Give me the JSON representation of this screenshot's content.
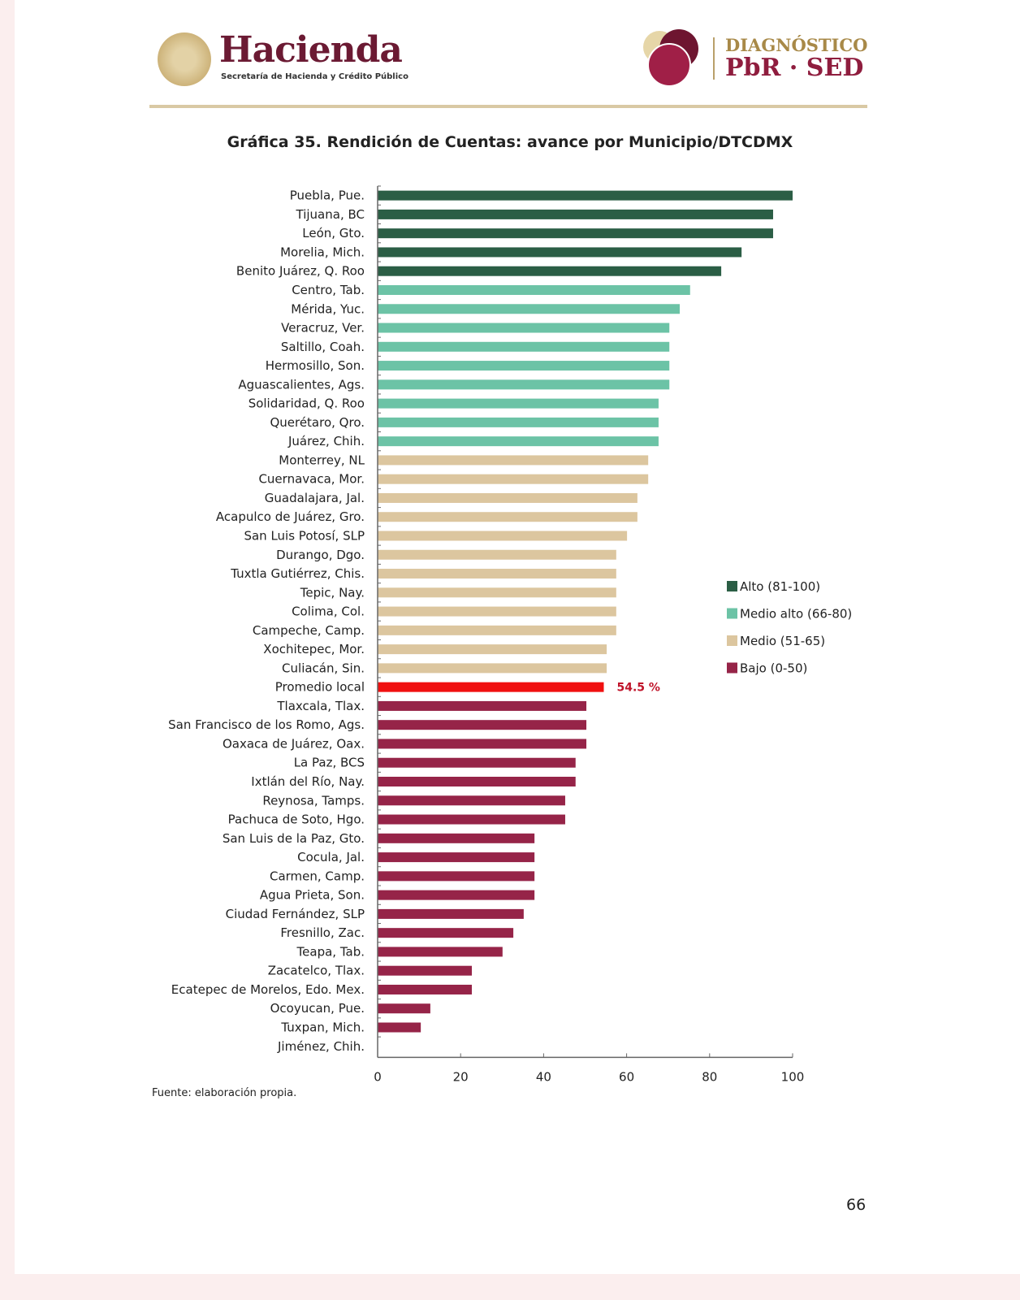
{
  "header": {
    "logo_left_title": "Hacienda",
    "logo_left_subtitle": "Secretaría de Hacienda y Crédito Público",
    "logo_right_line1": "DIAGNÓSTICO",
    "logo_right_line2": "PbR · SED"
  },
  "chart_data": {
    "type": "bar",
    "orientation": "horizontal",
    "title": "Gráfica 35. Rendición de Cuentas: avance por Municipio/DTCDMX",
    "xlabel": "",
    "ylabel": "",
    "xlim": [
      0,
      100
    ],
    "xticks": [
      "0",
      "20",
      "40",
      "60",
      "80",
      "100"
    ],
    "grid": false,
    "legend_position": "right",
    "colors": {
      "alto": "#2b5e45",
      "medio_alto": "#6cc3a6",
      "medio": "#dcc69f",
      "bajo": "#962448",
      "promedio": "#f01010"
    },
    "legend": [
      {
        "key": "alto",
        "label": "Alto (81-100)"
      },
      {
        "key": "medio_alto",
        "label": "Medio alto (66-80)"
      },
      {
        "key": "medio",
        "label": "Medio (51-65)"
      },
      {
        "key": "bajo",
        "label": "Bajo (0-50)"
      }
    ],
    "bars": [
      {
        "label": "Puebla, Pue.",
        "value": 100,
        "group": "alto"
      },
      {
        "label": "Tijuana, BC",
        "value": 95.3,
        "group": "alto"
      },
      {
        "label": "León, Gto.",
        "value": 95.3,
        "group": "alto"
      },
      {
        "label": "Morelia, Mich.",
        "value": 87.7,
        "group": "alto"
      },
      {
        "label": "Benito Juárez, Q. Roo",
        "value": 82.8,
        "group": "alto"
      },
      {
        "label": "Centro, Tab.",
        "value": 75.3,
        "group": "medio_alto"
      },
      {
        "label": "Mérida, Yuc.",
        "value": 72.8,
        "group": "medio_alto"
      },
      {
        "label": "Veracruz, Ver.",
        "value": 70.3,
        "group": "medio_alto"
      },
      {
        "label": "Saltillo, Coah.",
        "value": 70.3,
        "group": "medio_alto"
      },
      {
        "label": "Hermosillo, Son.",
        "value": 70.3,
        "group": "medio_alto"
      },
      {
        "label": "Aguascalientes, Ags.",
        "value": 70.3,
        "group": "medio_alto"
      },
      {
        "label": "Solidaridad, Q. Roo",
        "value": 67.7,
        "group": "medio_alto"
      },
      {
        "label": "Querétaro, Qro.",
        "value": 67.7,
        "group": "medio_alto"
      },
      {
        "label": "Juárez, Chih.",
        "value": 67.7,
        "group": "medio_alto"
      },
      {
        "label": "Monterrey, NL",
        "value": 65.2,
        "group": "medio"
      },
      {
        "label": "Cuernavaca, Mor.",
        "value": 65.2,
        "group": "medio"
      },
      {
        "label": "Guadalajara, Jal.",
        "value": 62.6,
        "group": "medio"
      },
      {
        "label": "Acapulco de Juárez, Gro.",
        "value": 62.6,
        "group": "medio"
      },
      {
        "label": "San Luis Potosí, SLP",
        "value": 60.1,
        "group": "medio"
      },
      {
        "label": "Durango, Dgo.",
        "value": 57.5,
        "group": "medio"
      },
      {
        "label": "Tuxtla Gutiérrez, Chis.",
        "value": 57.5,
        "group": "medio"
      },
      {
        "label": "Tepic, Nay.",
        "value": 57.5,
        "group": "medio"
      },
      {
        "label": "Colima, Col.",
        "value": 57.5,
        "group": "medio"
      },
      {
        "label": "Campeche, Camp.",
        "value": 57.5,
        "group": "medio"
      },
      {
        "label": "Xochitepec, Mor.",
        "value": 55.2,
        "group": "medio"
      },
      {
        "label": "Culiacán, Sin.",
        "value": 55.2,
        "group": "medio"
      },
      {
        "label": "Promedio local",
        "value": 54.5,
        "group": "promedio",
        "data_label": "54.5 %"
      },
      {
        "label": "Tlaxcala, Tlax.",
        "value": 50.3,
        "group": "bajo"
      },
      {
        "label": "San Francisco de los Romo, Ags.",
        "value": 50.3,
        "group": "bajo"
      },
      {
        "label": "Oaxaca de Juárez, Oax.",
        "value": 50.3,
        "group": "bajo"
      },
      {
        "label": "La Paz, BCS",
        "value": 47.7,
        "group": "bajo"
      },
      {
        "label": "Ixtlán del Río, Nay.",
        "value": 47.7,
        "group": "bajo"
      },
      {
        "label": "Reynosa, Tamps.",
        "value": 45.2,
        "group": "bajo"
      },
      {
        "label": "Pachuca de Soto, Hgo.",
        "value": 45.2,
        "group": "bajo"
      },
      {
        "label": "San Luis de la Paz, Gto.",
        "value": 37.8,
        "group": "bajo"
      },
      {
        "label": "Cocula, Jal.",
        "value": 37.8,
        "group": "bajo"
      },
      {
        "label": "Carmen, Camp.",
        "value": 37.8,
        "group": "bajo"
      },
      {
        "label": "Agua Prieta, Son.",
        "value": 37.8,
        "group": "bajo"
      },
      {
        "label": "Ciudad Fernández, SLP",
        "value": 35.2,
        "group": "bajo"
      },
      {
        "label": "Fresnillo, Zac.",
        "value": 32.7,
        "group": "bajo"
      },
      {
        "label": "Teapa, Tab.",
        "value": 30.1,
        "group": "bajo"
      },
      {
        "label": "Zacatelco, Tlax.",
        "value": 22.7,
        "group": "bajo"
      },
      {
        "label": "Ecatepec de Morelos, Edo. Mex.",
        "value": 22.7,
        "group": "bajo"
      },
      {
        "label": "Ocoyucan, Pue.",
        "value": 12.7,
        "group": "bajo"
      },
      {
        "label": "Tuxpan, Mich.",
        "value": 10.4,
        "group": "bajo"
      },
      {
        "label": "Jiménez, Chih.",
        "value": 0,
        "group": "bajo"
      }
    ]
  },
  "footer": {
    "source": "Fuente: elaboración propia.",
    "page_number": "66"
  }
}
